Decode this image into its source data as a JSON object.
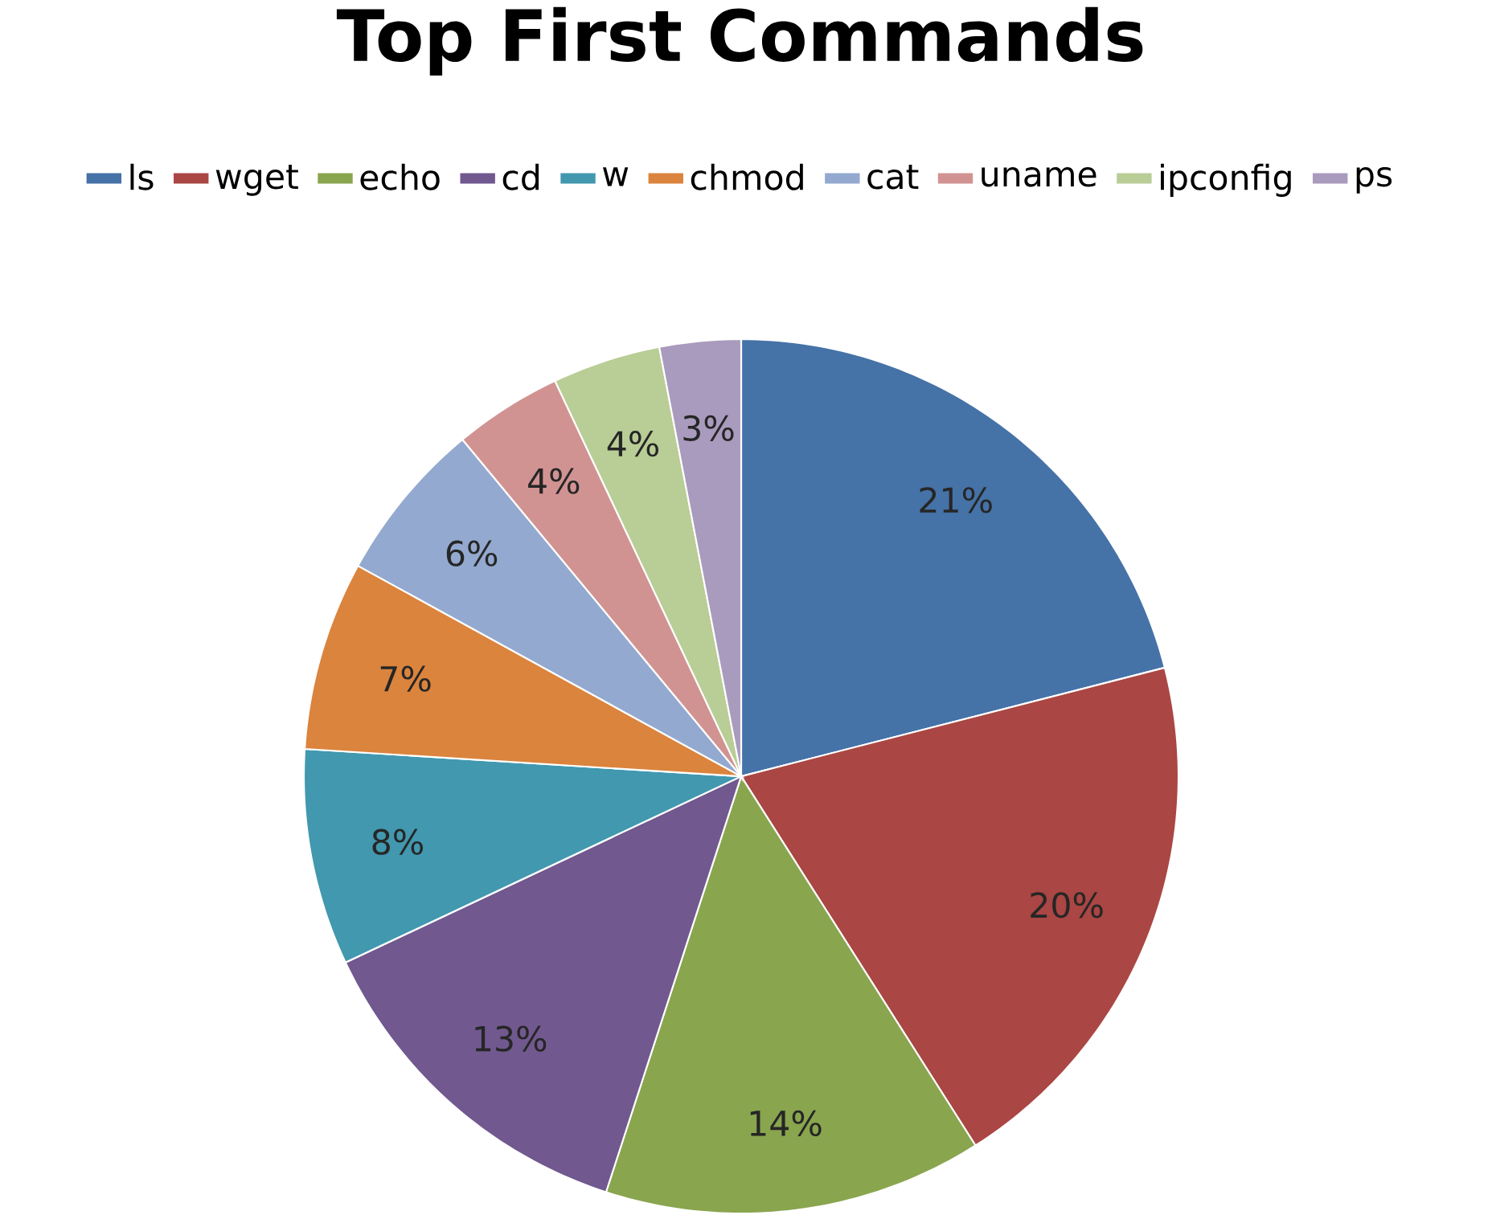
{
  "chart_data": {
    "type": "pie",
    "title": "Top First Commands",
    "categories": [
      "ls",
      "wget",
      "echo",
      "cd",
      "w",
      "chmod",
      "cat",
      "uname",
      "ipconfig",
      "ps"
    ],
    "values": [
      21,
      20,
      14,
      13,
      8,
      7,
      6,
      4,
      4,
      3
    ],
    "value_labels": [
      "21%",
      "20%",
      "14%",
      "13%",
      "8%",
      "7%",
      "6%",
      "4%",
      "4%",
      "3%"
    ],
    "colors": [
      "#4572a7",
      "#aa4643",
      "#89a54e",
      "#71588f",
      "#4198af",
      "#db843d",
      "#93a9cf",
      "#d19392",
      "#b9cd96",
      "#a99bbd"
    ],
    "legend": "top"
  }
}
